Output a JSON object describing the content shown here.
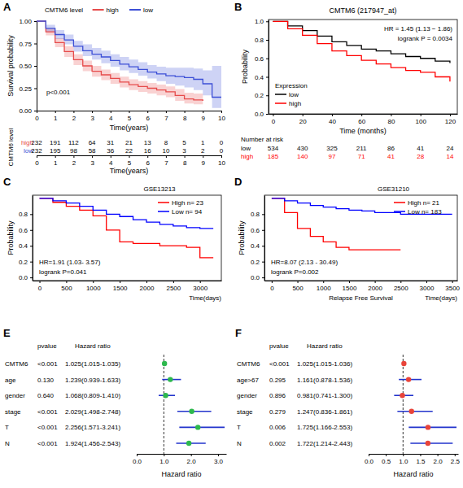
{
  "chart_data": [
    {
      "type": "line",
      "label": "A",
      "legend_title": "CMTM6 level",
      "legend": "top",
      "annotations": [
        "p<0.001"
      ],
      "xlabel": "Time(years)",
      "ylabel": "Survival probability",
      "x": [
        0,
        0.5,
        1,
        1.5,
        2,
        2.5,
        3,
        3.5,
        4,
        4.5,
        5,
        5.5,
        6,
        6.5,
        7,
        7.5,
        8,
        8.5,
        9,
        9.5,
        10
      ],
      "xlim": [
        0,
        10
      ],
      "xticks": [
        0,
        1,
        2,
        3,
        4,
        5,
        6,
        7,
        8,
        9,
        10
      ],
      "ylim": [
        0,
        1
      ],
      "yticks": [
        {
          "value": 0,
          "label": "0.00"
        },
        0.25,
        {
          "value": 0.5,
          "label": "0.50"
        },
        0.75,
        {
          "value": 1,
          "label": "1.00"
        }
      ],
      "series": [
        {
          "name": "high",
          "color": "#e64b4b",
          "values": [
            1,
            0.88,
            0.76,
            0.66,
            0.57,
            0.5,
            0.44,
            0.4,
            0.36,
            0.32,
            0.29,
            0.27,
            0.25,
            0.23,
            0.21,
            0.17,
            0.13,
            0.12,
            0.11,
            null,
            null
          ],
          "lower": [
            1,
            0.84,
            0.71,
            0.6,
            0.51,
            0.44,
            0.38,
            0.34,
            0.3,
            0.26,
            0.23,
            0.21,
            0.19,
            0.17,
            0.15,
            0.11,
            0.08,
            0.07,
            0.06,
            null,
            null
          ],
          "upper": [
            1,
            0.92,
            0.81,
            0.72,
            0.63,
            0.56,
            0.5,
            0.46,
            0.42,
            0.38,
            0.35,
            0.33,
            0.31,
            0.29,
            0.27,
            0.24,
            0.2,
            0.19,
            0.18,
            null,
            null
          ]
        },
        {
          "name": "low",
          "color": "#3c4fd6",
          "values": [
            1,
            0.92,
            0.85,
            0.79,
            0.72,
            0.67,
            0.63,
            0.6,
            0.56,
            0.52,
            0.49,
            0.46,
            0.43,
            0.41,
            0.39,
            0.38,
            0.37,
            0.35,
            0.3,
            0.15,
            0.15
          ],
          "lower": [
            1,
            0.88,
            0.8,
            0.74,
            0.66,
            0.61,
            0.57,
            0.53,
            0.49,
            0.45,
            0.42,
            0.39,
            0.36,
            0.33,
            0.3,
            0.28,
            0.26,
            0.23,
            0.17,
            0.03,
            0.03
          ],
          "upper": [
            1,
            0.96,
            0.9,
            0.85,
            0.78,
            0.74,
            0.7,
            0.67,
            0.63,
            0.6,
            0.57,
            0.54,
            0.51,
            0.49,
            0.48,
            0.48,
            0.48,
            0.47,
            0.45,
            0.5,
            0.5
          ]
        }
      ],
      "risk_table": {
        "title": "CMTM6 level",
        "xlabel": "Time(years)",
        "x": [
          0,
          1,
          2,
          3,
          4,
          5,
          6,
          7,
          8,
          9,
          10
        ],
        "rows": [
          {
            "name": "high",
            "color": "#e64b4b",
            "values": [
              232,
              191,
              112,
              64,
              31,
              21,
              13,
              8,
              5,
              1,
              0
            ]
          },
          {
            "name": "low",
            "color": "#3c4fd6",
            "values": [
              232,
              195,
              98,
              58,
              36,
              22,
              16,
              10,
              3,
              2,
              0
            ]
          }
        ]
      }
    },
    {
      "type": "line",
      "label": "B",
      "title": "CMTM6 (217947_at)",
      "legend_title": "Expression",
      "legend": "bottom-left",
      "annotations": [
        "HR = 1.45 (1.13 − 1.86)",
        "logrank P = 0.0034"
      ],
      "xlabel": "Time (months)",
      "ylabel": "Probability",
      "x": [
        0,
        10,
        20,
        30,
        40,
        50,
        60,
        70,
        80,
        90,
        100,
        110,
        120
      ],
      "xlim": [
        -3,
        125
      ],
      "xticks": [
        0,
        20,
        40,
        60,
        80,
        100,
        120
      ],
      "ylim": [
        0,
        1.02
      ],
      "yticks": [
        {
          "value": 0,
          "label": "0.0"
        },
        0.2,
        0.4,
        0.6,
        0.8,
        {
          "value": 1,
          "label": "1.0"
        }
      ],
      "series": [
        {
          "name": "low",
          "color": "#000000",
          "values": [
            1,
            0.95,
            0.9,
            0.84,
            0.78,
            0.74,
            0.7,
            0.68,
            0.65,
            0.62,
            0.6,
            0.57,
            0.55
          ]
        },
        {
          "name": "high",
          "color": "#ff0000",
          "values": [
            1,
            0.92,
            0.85,
            0.76,
            0.68,
            0.63,
            0.58,
            0.54,
            0.5,
            0.47,
            0.45,
            0.4,
            0.35
          ]
        }
      ],
      "risk_table": {
        "title": "Number at risk",
        "x": [
          0,
          20,
          40,
          60,
          80,
          100,
          120
        ],
        "rows": [
          {
            "name": "low",
            "color": "#000000",
            "values": [
              534,
              430,
              325,
              211,
              86,
              41,
              24
            ]
          },
          {
            "name": "high",
            "color": "#ff0000",
            "values": [
              185,
              140,
              97,
              71,
              41,
              28,
              14
            ]
          }
        ]
      }
    },
    {
      "type": "line",
      "label": "C",
      "title": "GSE13213",
      "legend": "top-right",
      "annotations": [
        "HR=1.91 (1.03- 3.57)",
        "logrank P=0.041"
      ],
      "xlabel": "Time(days)",
      "ylabel": "Probability",
      "x": [
        0,
        250,
        500,
        750,
        1000,
        1250,
        1500,
        1750,
        2000,
        2250,
        2500,
        2750,
        3000,
        3250
      ],
      "xlim": [
        -130,
        3400
      ],
      "xticks": [
        0,
        500,
        1000,
        1500,
        2000,
        2500,
        3000
      ],
      "ylim": [
        -0.04,
        1.04
      ],
      "yticks": [
        {
          "value": 0,
          "label": "0.0"
        },
        0.2,
        0.4,
        0.6,
        0.8
      ],
      "series": [
        {
          "name": "High n= 23",
          "color": "#ff0000",
          "values": [
            1,
            0.95,
            0.9,
            0.85,
            0.78,
            0.6,
            0.45,
            0.43,
            0.43,
            0.4,
            0.4,
            0.38,
            0.25,
            0.25
          ]
        },
        {
          "name": "Low n= 94",
          "color": "#0000ff",
          "values": [
            1,
            0.97,
            0.94,
            0.9,
            0.85,
            0.8,
            0.77,
            0.73,
            0.7,
            0.67,
            0.65,
            0.63,
            0.62,
            0.62
          ]
        }
      ]
    },
    {
      "type": "line",
      "label": "D",
      "title": "GSE31210",
      "legend": "top-right",
      "annotations": [
        "HR=8.07 (2.13 - 30.49)",
        "logrank P=0.002"
      ],
      "xlabel": "Time(days)",
      "caption": "Relapse Free Survival",
      "ylabel": "Probability",
      "x": [
        0,
        250,
        500,
        750,
        1000,
        1250,
        1500,
        1750,
        2000,
        2500,
        3000,
        3500
      ],
      "xlim": [
        -140,
        3600
      ],
      "xticks": [
        0,
        500,
        1000,
        1500,
        2000,
        2500,
        3000,
        3500
      ],
      "ylim": [
        -0.04,
        1.04
      ],
      "yticks": [
        {
          "value": 0,
          "label": "0.0"
        },
        0.2,
        0.4,
        0.6,
        0.8
      ],
      "series": [
        {
          "name": "High n= 21",
          "color": "#ff0000",
          "values": [
            1,
            0.82,
            0.62,
            0.52,
            0.45,
            0.38,
            0.35,
            0.35,
            0.35,
            0.35,
            null,
            null
          ]
        },
        {
          "name": "Low n= 183",
          "color": "#0000ff",
          "values": [
            1,
            0.97,
            0.94,
            0.91,
            0.89,
            0.87,
            0.85,
            0.84,
            0.82,
            0.8,
            0.8,
            0.8
          ]
        }
      ]
    },
    {
      "type": "forest",
      "label": "E",
      "columns": [
        "pvalue",
        "Hazard ratio"
      ],
      "categories": [
        "CMTM6",
        "age",
        "gender",
        "stage",
        "T",
        "N"
      ],
      "pvalues": [
        "<0.001",
        "0.130",
        "0.640",
        "<0.001",
        "<0.001",
        "<0.001"
      ],
      "values": [
        1.025,
        1.239,
        1.068,
        2.029,
        2.256,
        1.924
      ],
      "lower": [
        1.015,
        0.939,
        0.809,
        1.498,
        1.571,
        1.456
      ],
      "upper": [
        1.035,
        1.633,
        1.41,
        2.748,
        3.241,
        2.543
      ],
      "value_labels": [
        "1.025(1.015-1.035)",
        "1.239(0.939-1.633)",
        "1.068(0.809-1.410)",
        "2.029(1.498-2.748)",
        "2.256(1.571-3.241)",
        "1.924(1.456-2.543)"
      ],
      "reference": 1,
      "color": "#2db84d",
      "xlabel": "Hazard ratio",
      "xlim": [
        0,
        3.3
      ],
      "xticks": [
        {
          "value": 0,
          "label": "0.0"
        },
        {
          "value": 1,
          "label": "1.0"
        },
        {
          "value": 2,
          "label": "2.0"
        },
        {
          "value": 3,
          "label": "3.0"
        }
      ]
    },
    {
      "type": "forest",
      "label": "F",
      "columns": [
        "pvalue",
        "Hazard ratio"
      ],
      "categories": [
        "CMTM6",
        "age>67",
        "gender",
        "stage",
        "T",
        "N"
      ],
      "pvalues": [
        "<0.001",
        "0.295",
        "0.896",
        "0.279",
        "0.006",
        "0.002"
      ],
      "values": [
        1.025,
        1.161,
        0.981,
        1.247,
        1.725,
        1.722
      ],
      "lower": [
        1.015,
        0.878,
        0.741,
        0.836,
        1.166,
        1.214
      ],
      "upper": [
        1.036,
        1.536,
        1.3,
        1.861,
        2.553,
        2.443
      ],
      "value_labels": [
        "1.025(1.015-1.036)",
        "1.161(0.878-1.536)",
        "0.981(0.741-1.300)",
        "1.247(0.836-1.861)",
        "1.725(1.166-2.553)",
        "1.722(1.214-2.443)"
      ],
      "reference": 1,
      "color": "#e8443a",
      "xlabel": "Hazard ratio",
      "xlim": [
        0,
        2.6
      ],
      "xticks": [
        {
          "value": 0,
          "label": "0.0"
        },
        0.5,
        {
          "value": 1,
          "label": "1.0"
        },
        1.5,
        {
          "value": 2,
          "label": "2.0"
        },
        2.5
      ]
    }
  ]
}
